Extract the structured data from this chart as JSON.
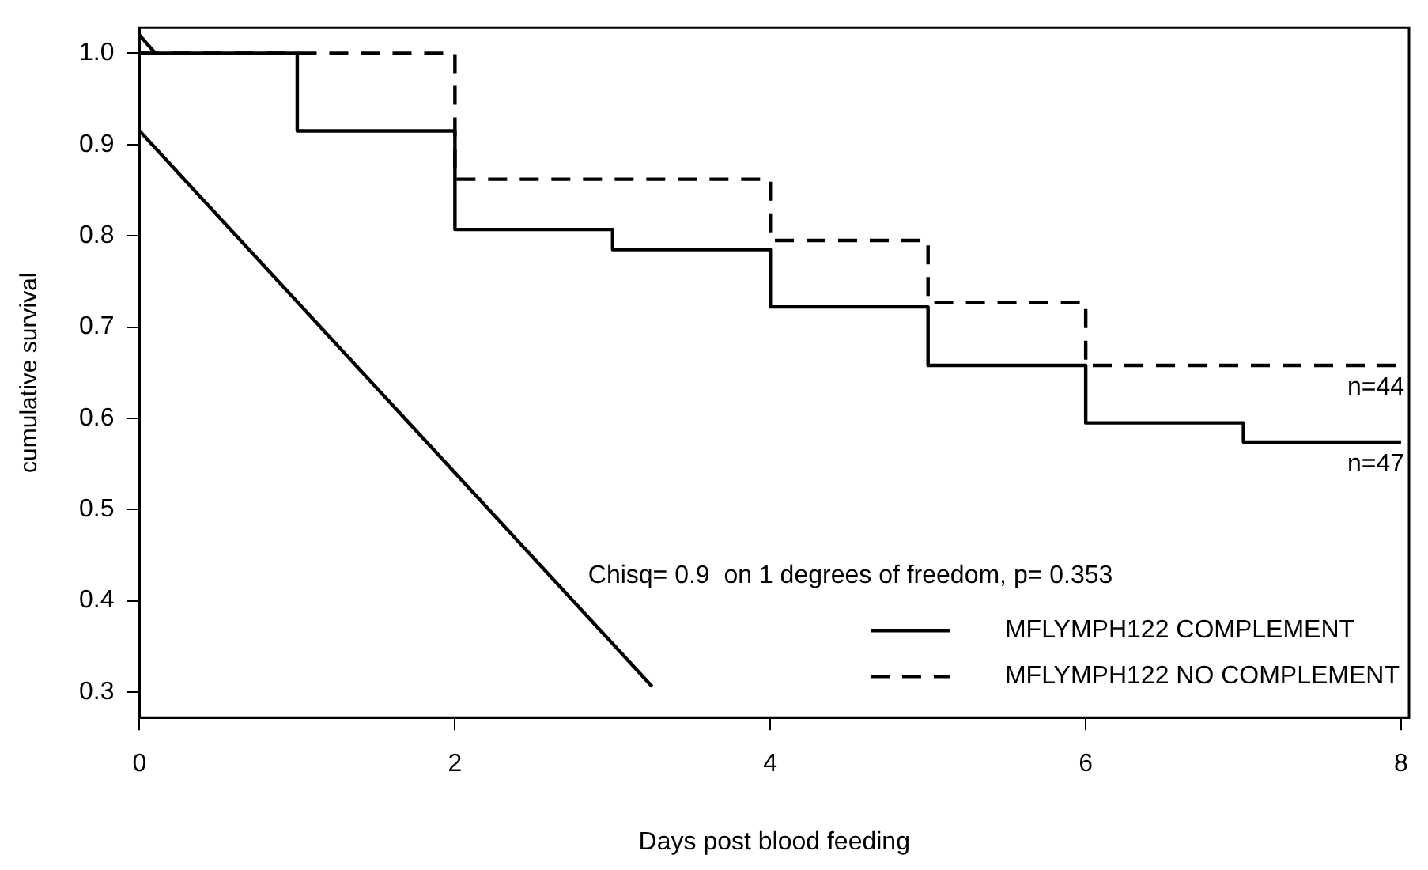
{
  "chart_data": {
    "type": "step",
    "xlabel": "Days post blood feeding",
    "ylabel": "cumulative survival",
    "xlim": [
      0,
      8.05
    ],
    "ylim": [
      0.272,
      1.028
    ],
    "xticks": [
      0,
      2,
      4,
      6,
      8
    ],
    "yticks": [
      0.3,
      0.4,
      0.5,
      0.6,
      0.7,
      0.8,
      0.9,
      {
        "value": 1,
        "label": "1.0"
      }
    ],
    "grid": false,
    "legend": "bottom right",
    "marker": "none",
    "series": [
      {
        "name": "MFLYMPH122 COMPLEMENT",
        "color": "#000000",
        "line_style": "solid",
        "x": [
          0,
          1,
          2,
          3,
          4,
          5,
          6,
          7,
          8
        ],
        "values": [
          1.0,
          0.915,
          0.807,
          0.785,
          0.722,
          0.658,
          0.595,
          0.574,
          0.574
        ]
      },
      {
        "name": "MFLYMPH122 NO COMPLEMENT",
        "color": "#000000",
        "line_style": "dashed",
        "x": [
          0,
          2,
          4,
          5,
          6,
          8
        ],
        "values": [
          1.0,
          0.862,
          0.795,
          0.727,
          0.658,
          0.658
        ]
      },
      {
        "type": "line",
        "color": "#000000",
        "line_style": "solid",
        "x": [
          0,
          3.25
        ],
        "values": [
          0.915,
          0.306
        ]
      },
      {
        "type": "line",
        "color": "#000000",
        "line_style": "solid",
        "x": [
          0,
          0.1
        ],
        "values": [
          1.02,
          1.0
        ]
      }
    ],
    "annotations": [
      {
        "text": "n=44",
        "x": 8,
        "y": 0.658
      },
      {
        "text": "n=47",
        "x": 8,
        "y": 0.574
      },
      "Chisq= 0.9  on 1 degrees of freedom, p= 0.353"
    ]
  }
}
